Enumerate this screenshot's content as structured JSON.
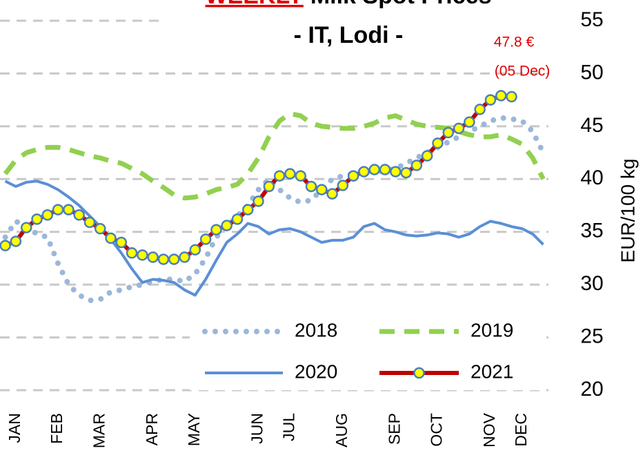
{
  "chart_data": {
    "type": "line",
    "title_highlight": "WEEKLY",
    "title": "Milk Spot Prices",
    "subtitle": "- IT, Lodi -",
    "ylabel": "EUR/100 kg",
    "ylim": [
      20,
      55
    ],
    "yticks": [
      20,
      25,
      30,
      35,
      40,
      45,
      50,
      55
    ],
    "grid": true,
    "legend": "bottom",
    "annotations": [
      {
        "text": "47.8 €"
      },
      {
        "text": "(05 Dec)"
      }
    ],
    "categories": [
      null,
      "JAN",
      null,
      null,
      null,
      "FEB",
      null,
      null,
      null,
      "MAR",
      null,
      null,
      null,
      null,
      "APR",
      null,
      null,
      null,
      "MAY",
      null,
      null,
      null,
      null,
      null,
      "JUN",
      null,
      null,
      "JUL",
      null,
      null,
      null,
      null,
      "AUG",
      null,
      null,
      null,
      null,
      "SEP",
      null,
      null,
      null,
      "OCT",
      null,
      null,
      null,
      null,
      "NOV",
      null,
      null,
      "DEC",
      null,
      null
    ],
    "series": [
      {
        "name": "2018",
        "color": "#9bb7d9",
        "style": "dotted",
        "values": [
          34.5,
          36,
          35.5,
          34.8,
          34.5,
          32,
          30,
          29,
          28.5,
          28.6,
          29.3,
          29.5,
          29.8,
          30,
          30.3,
          30.5,
          30.5,
          30.3,
          31,
          32.5,
          34.5,
          35.5,
          36.5,
          37.5,
          39,
          40,
          39,
          38.2,
          37.8,
          38,
          39,
          40,
          40.3,
          40.5,
          40.8,
          40.7,
          40.8,
          41,
          41.5,
          42,
          42.5,
          43,
          43.5,
          44,
          44.5,
          45,
          45.5,
          45.8,
          45.7,
          45.5,
          44.5,
          42.5
        ]
      },
      {
        "name": "2019",
        "color": "#92d050",
        "style": "dashed",
        "values": [
          40.5,
          41.8,
          42.5,
          42.8,
          43,
          43,
          42.8,
          42.5,
          42.2,
          42,
          41.7,
          41.5,
          41,
          40.5,
          39.8,
          39.2,
          38.5,
          38.2,
          38.3,
          38.6,
          39,
          39.2,
          39.5,
          40.5,
          42,
          44,
          45.5,
          46.2,
          46,
          45.3,
          45,
          44.9,
          44.8,
          44.8,
          45,
          45.3,
          45.8,
          46,
          45.6,
          45.2,
          45,
          44.9,
          44.8,
          44.5,
          44.2,
          44,
          44,
          44.2,
          43.8,
          43.3,
          42,
          40
        ]
      },
      {
        "name": "2020",
        "color": "#5b8fd6",
        "style": "solid",
        "values": [
          39.8,
          39.3,
          39.7,
          39.8,
          39.5,
          39,
          38.3,
          37.5,
          36.5,
          35.5,
          34.3,
          33,
          31.5,
          30.2,
          30.5,
          30.4,
          30.2,
          29.5,
          29,
          30.5,
          32.3,
          34,
          34.8,
          35.8,
          35.5,
          34.8,
          35.2,
          35.3,
          35,
          34.5,
          34,
          34.2,
          34.2,
          34.5,
          35.5,
          35.8,
          35.2,
          35,
          34.7,
          34.6,
          34.7,
          34.9,
          34.8,
          34.5,
          34.8,
          35.5,
          36,
          35.8,
          35.5,
          35.3,
          34.8,
          33.8
        ]
      },
      {
        "name": "2021",
        "color": "#c00000",
        "style": "marker",
        "marker_color": "#ffff00",
        "marker_edge": "#4a7ebb",
        "values": [
          33.7,
          34.1,
          35.4,
          36.2,
          36.6,
          37.1,
          37.1,
          36.6,
          35.9,
          35.3,
          34.4,
          34.0,
          33.0,
          32.8,
          32.6,
          32.4,
          32.4,
          32.6,
          33.3,
          34.3,
          35.2,
          35.6,
          36.2,
          37.1,
          37.9,
          39.3,
          40.3,
          40.5,
          40.3,
          39.3,
          39.0,
          38.6,
          39.4,
          40.3,
          40.7,
          40.9,
          40.9,
          40.7,
          40.6,
          41.3,
          42.2,
          43.4,
          44.4,
          44.8,
          45.4,
          46.6,
          47.5,
          47.9,
          47.8,
          null,
          null,
          null
        ]
      }
    ]
  }
}
